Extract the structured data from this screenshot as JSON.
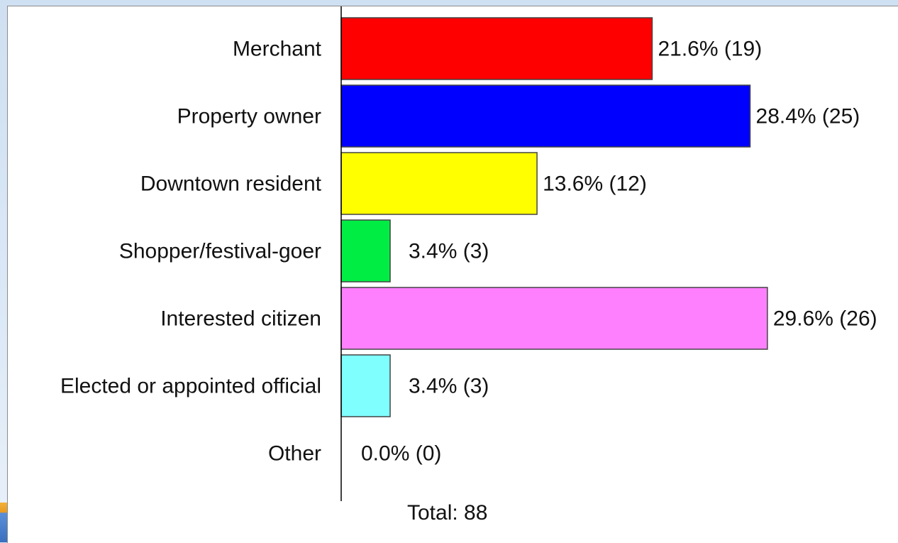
{
  "chart_data": {
    "type": "bar",
    "orientation": "horizontal",
    "categories": [
      "Merchant",
      "Property owner",
      "Downtown resident",
      "Shopper/festival-goer",
      "Interested citizen",
      "Elected or appointed official",
      "Other"
    ],
    "values": [
      21.6,
      28.4,
      13.6,
      3.4,
      29.6,
      3.4,
      0.0
    ],
    "counts": [
      19,
      25,
      12,
      3,
      26,
      3,
      0
    ],
    "value_labels": [
      "21.6% (19)",
      "28.4% (25)",
      "13.6% (12)",
      "3.4% (3)",
      "29.6% (26)",
      "3.4% (3)",
      "0.0% (0)"
    ],
    "colors": [
      "#ff0000",
      "#0000ff",
      "#ffff00",
      "#00ee44",
      "#ff80ff",
      "#80ffff",
      "#ffffff"
    ],
    "bar_border_color": "#444444",
    "total_label": "Total: 88",
    "grid": false,
    "legend": "none",
    "title": "",
    "xlabel": "",
    "ylabel": ""
  }
}
